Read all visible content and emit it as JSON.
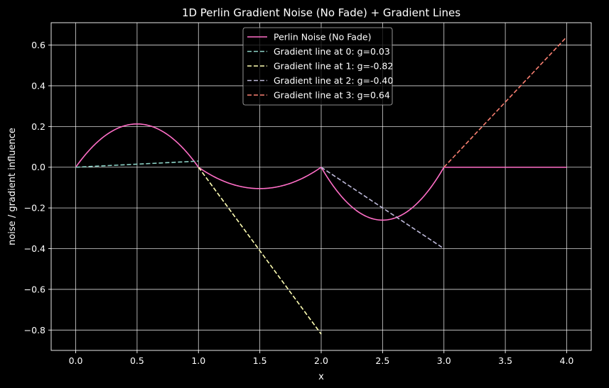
{
  "chart_data": {
    "type": "line",
    "title": "1D Perlin Gradient Noise (No Fade) + Gradient Lines",
    "xlabel": "x",
    "ylabel": "noise / gradient influence",
    "xlim": [
      -0.2,
      4.2
    ],
    "ylim": [
      -0.9,
      0.71
    ],
    "xticks": [
      0.0,
      0.5,
      1.0,
      1.5,
      2.0,
      2.5,
      3.0,
      3.5,
      4.0
    ],
    "xtick_labels": [
      "0.0",
      "0.5",
      "1.0",
      "1.5",
      "2.0",
      "2.5",
      "3.0",
      "3.5",
      "4.0"
    ],
    "yticks": [
      -0.8,
      -0.6,
      -0.4,
      -0.2,
      0.0,
      0.2,
      0.4,
      0.6
    ],
    "ytick_labels": [
      "−0.8",
      "−0.6",
      "−0.4",
      "−0.2",
      "0.0",
      "0.2",
      "0.4",
      "0.6"
    ],
    "grid": true,
    "legend_position": "top-center",
    "gradients": [
      0.03,
      -0.82,
      -0.4,
      0.64
    ],
    "series": [
      {
        "name": "Perlin Noise (No Fade)",
        "color": "#ff6ec7",
        "style": "solid",
        "kind": "noise",
        "x": [
          0.0,
          0.1,
          0.2,
          0.3,
          0.4,
          0.5,
          0.6,
          0.7,
          0.8,
          0.9,
          1.0,
          1.1,
          1.2,
          1.3,
          1.4,
          1.5,
          1.6,
          1.7,
          1.8,
          1.9,
          2.0,
          2.1,
          2.2,
          2.3,
          2.4,
          2.5,
          2.6,
          2.7,
          2.8,
          2.9,
          3.0,
          3.1,
          3.2,
          3.3,
          3.4,
          3.5,
          3.6,
          3.7,
          3.8,
          3.9,
          4.0
        ],
        "y": [
          0.0,
          0.076,
          0.134,
          0.176,
          0.201,
          0.21,
          0.202,
          0.176,
          0.134,
          0.076,
          0.0,
          -0.038,
          -0.069,
          -0.09,
          -0.102,
          -0.105,
          -0.102,
          -0.09,
          -0.069,
          -0.038,
          0.0,
          -0.082,
          -0.154,
          -0.21,
          -0.247,
          -0.26,
          -0.247,
          -0.207,
          -0.144,
          -0.062,
          0.0,
          0.015,
          0.025,
          0.03,
          0.032,
          0.033,
          0.031,
          0.027,
          0.02,
          0.011,
          0.0
        ]
      },
      {
        "name": "Gradient line at 0: g=0.03",
        "color": "#8dd3c7",
        "style": "dashed",
        "kind": "gradient",
        "x": [
          0.0,
          1.0
        ],
        "y": [
          0.0,
          0.03
        ]
      },
      {
        "name": "Gradient line at 1: g=-0.82",
        "color": "#ffffb3",
        "style": "dashed",
        "kind": "gradient",
        "x": [
          1.0,
          2.0
        ],
        "y": [
          0.0,
          -0.82
        ]
      },
      {
        "name": "Gradient line at 2: g=-0.40",
        "color": "#bebada",
        "style": "dashed",
        "kind": "gradient",
        "x": [
          2.0,
          3.0
        ],
        "y": [
          0.0,
          -0.4
        ]
      },
      {
        "name": "Gradient line at 3: g=0.64",
        "color": "#fa8072",
        "style": "dashed",
        "kind": "gradient",
        "x": [
          3.0,
          4.0
        ],
        "y": [
          0.0,
          0.64
        ]
      }
    ]
  }
}
